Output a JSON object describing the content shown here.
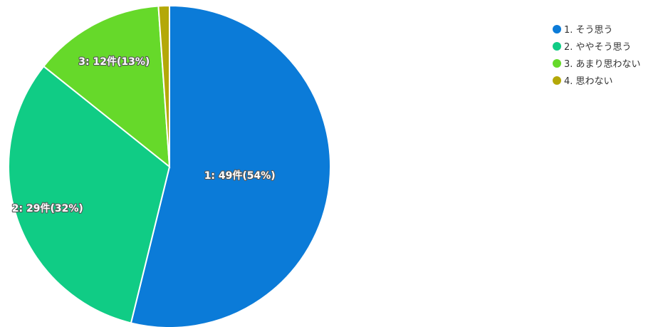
{
  "chart_data": {
    "type": "pie",
    "title": "",
    "slices": [
      {
        "legend": "1. そう思う",
        "label": "1: 49件(54%)",
        "value": 49,
        "color": "#0b7bd8"
      },
      {
        "legend": "2. ややそう思う",
        "label": "2: 29件(32%)",
        "value": 29,
        "color": "#10cc85"
      },
      {
        "legend": "3. あまり思わない",
        "label": "3: 12件(13%)",
        "value": 12,
        "color": "#66d92a"
      },
      {
        "legend": "4. 思わない",
        "label": "",
        "value": 1,
        "color": "#b4a808"
      }
    ],
    "legend_position": "top-right"
  }
}
